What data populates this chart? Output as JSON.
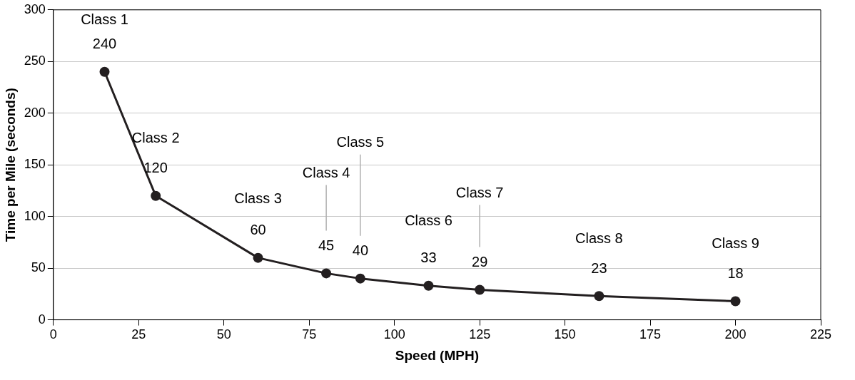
{
  "chart_data": {
    "type": "line",
    "xlabel": "Speed (MPH)",
    "ylabel": "Time per Mile (seconds)",
    "x": [
      15,
      30,
      60,
      80,
      90,
      110,
      125,
      160,
      200
    ],
    "series": [
      {
        "color": "#231f20",
        "values": [
          240,
          120,
          60,
          45,
          40,
          33,
          29,
          23,
          18
        ]
      }
    ],
    "xlim": [
      0,
      225
    ],
    "xticks": [
      0,
      25,
      50,
      75,
      100,
      125,
      150,
      175,
      200,
      225
    ],
    "ylim": [
      0,
      300
    ],
    "yticks": [
      0,
      50,
      100,
      150,
      200,
      250,
      300
    ],
    "grid": "y",
    "legend": false,
    "marker": "circle",
    "line_style": "solid",
    "data_labels": true,
    "annotations": [
      "Class 1",
      "Class 2",
      "Class 3",
      "Class 4",
      "Class 5",
      "Class 6",
      "Class 7",
      "Class 8",
      "Class 9"
    ]
  }
}
